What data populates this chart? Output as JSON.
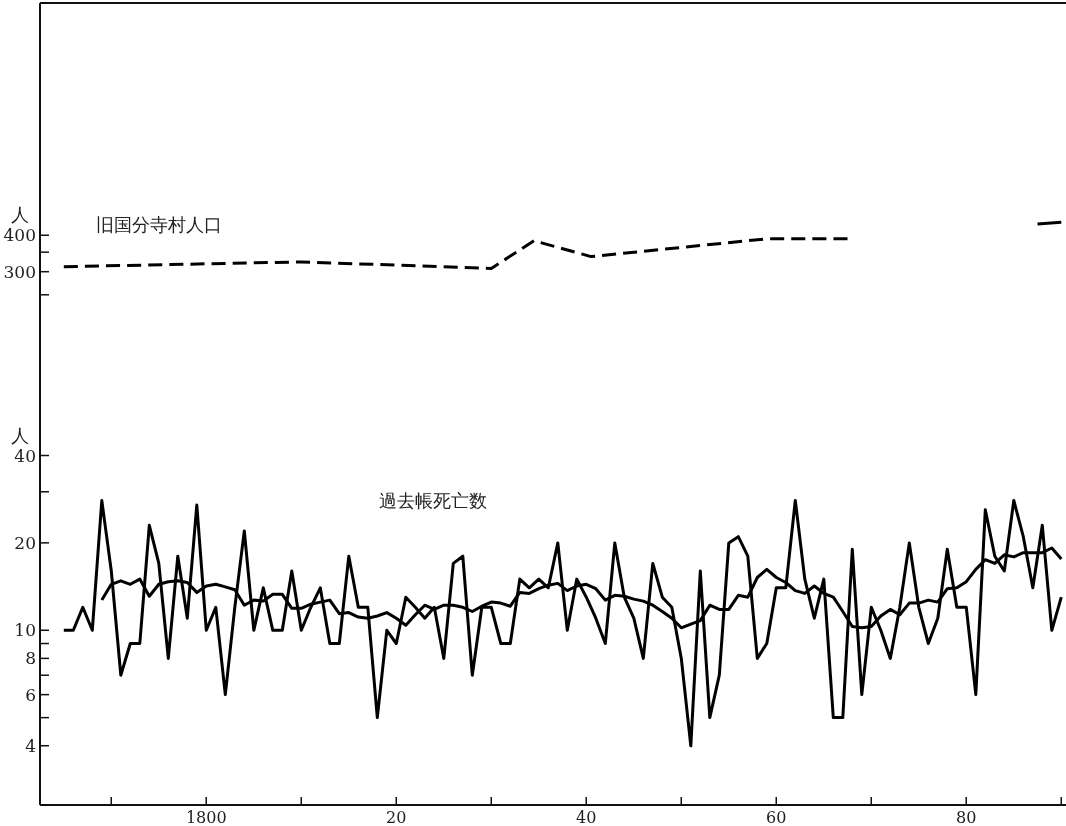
{
  "chart_data": [
    {
      "type": "line",
      "ylabel": "人",
      "log": "y",
      "xlim": [
        1782.5,
        1890.5
      ],
      "ylim": [
        175,
        2500
      ],
      "yticks": [
        {
          "value": 250,
          "label": null
        },
        300,
        {
          "value": 350,
          "label": null
        },
        400
      ],
      "tick_labels": "y",
      "series": [
        {
          "name": "旧国分寺村人口",
          "color": "#000000",
          "line_style": "dashed",
          "x": [
            1785,
            1810,
            1830,
            1834.5,
            1840.5,
            1859,
            1867.5
          ],
          "values": [
            312,
            324,
            308,
            383,
            338,
            389,
            389
          ]
        },
        {
          "color": "#000000",
          "line_style": "solid",
          "x": [
            1887.5,
            1890
          ],
          "values": [
            437,
            443
          ]
        }
      ]
    },
    {
      "type": "line",
      "ylabel": "人",
      "log": "y",
      "xlim": [
        1782.5,
        1890.5
      ],
      "ylim": [
        2.5,
        100
      ],
      "yticks": [
        {
          "value": 4,
          "label": "4"
        },
        {
          "value": 5,
          "label": null
        },
        6,
        {
          "value": 7,
          "label": null
        },
        8,
        {
          "value": 9,
          "label": null
        },
        10,
        20,
        {
          "value": 30,
          "label": null
        },
        40
      ],
      "xticks": [
        {
          "value": 1790,
          "label": null
        },
        1800,
        {
          "value": 1810,
          "label": null
        },
        {
          "value": 1820,
          "label": "20"
        },
        {
          "value": 1830,
          "label": null
        },
        {
          "value": 1840,
          "label": "40"
        },
        {
          "value": 1850,
          "label": null
        },
        {
          "value": 1860,
          "label": "60"
        },
        {
          "value": 1870,
          "label": null
        },
        {
          "value": 1880,
          "label": "80"
        },
        {
          "value": 1890,
          "label": null
        }
      ],
      "series": [
        {
          "name": "過去帳死亡数",
          "color": "#000000",
          "line_style": "solid",
          "x": [
            1785,
            1786,
            1787,
            1788,
            1789,
            1790,
            1791,
            1792,
            1793,
            1794,
            1795,
            1796,
            1797,
            1798,
            1799,
            1800,
            1801,
            1802,
            1803,
            1804,
            1805,
            1806,
            1807,
            1808,
            1809,
            1810,
            1811,
            1812,
            1813,
            1814,
            1815,
            1816,
            1817,
            1818,
            1819,
            1820,
            1821,
            1822,
            1823,
            1824,
            1825,
            1826,
            1827,
            1828,
            1829,
            1830,
            1831,
            1832,
            1833,
            1834,
            1835,
            1836,
            1837,
            1838,
            1839,
            1840,
            1841,
            1842,
            1843,
            1844,
            1845,
            1846,
            1847,
            1848,
            1849,
            1850,
            1851,
            1852,
            1853,
            1854,
            1855,
            1856,
            1857,
            1858,
            1859,
            1860,
            1861,
            1862,
            1863,
            1864,
            1865,
            1866,
            1867,
            1868,
            1869,
            1870,
            1871,
            1872,
            1873,
            1874,
            1875,
            1876,
            1877,
            1878,
            1879,
            1880,
            1881,
            1882,
            1883,
            1884,
            1885,
            1886,
            1887,
            1888,
            1889,
            1890
          ],
          "values": [
            10,
            10,
            12,
            10,
            28,
            16,
            7,
            9,
            9,
            23,
            17,
            8,
            18,
            11,
            27,
            10,
            12,
            6,
            12,
            22,
            10,
            14,
            10,
            10,
            16,
            10,
            12,
            14,
            9,
            9,
            18,
            12,
            12,
            5,
            10,
            9,
            13,
            12,
            11,
            12,
            8,
            17,
            18,
            7,
            12,
            12,
            9,
            9,
            15,
            14,
            15,
            14,
            20,
            10,
            15,
            13,
            11,
            9,
            20,
            13,
            11,
            8,
            17,
            13,
            12,
            8,
            4,
            16,
            5,
            7,
            20,
            21,
            18,
            8,
            9,
            14,
            14,
            28,
            15,
            11,
            15,
            5,
            5,
            19,
            6,
            12,
            10,
            8,
            12,
            20,
            12,
            9,
            11,
            19,
            12,
            12,
            6,
            26,
            18,
            16,
            28,
            21,
            14,
            23,
            10,
            13
          ]
        },
        {
          "color": "#000000",
          "line_style": "solid",
          "x": [
            1789,
            1790,
            1791,
            1792,
            1793,
            1794,
            1795,
            1796,
            1797,
            1798,
            1799,
            1800,
            1801,
            1802,
            1803,
            1804,
            1805,
            1806,
            1807,
            1808,
            1809,
            1810,
            1811,
            1812,
            1813,
            1814,
            1815,
            1816,
            1817,
            1818,
            1819,
            1820,
            1821,
            1822,
            1823,
            1824,
            1825,
            1826,
            1827,
            1828,
            1829,
            1830,
            1831,
            1832,
            1833,
            1834,
            1835,
            1836,
            1837,
            1838,
            1839,
            1840,
            1841,
            1842,
            1843,
            1844,
            1845,
            1846,
            1847,
            1848,
            1849,
            1850,
            1851,
            1852,
            1853,
            1854,
            1855,
            1856,
            1857,
            1858,
            1859,
            1860,
            1861,
            1862,
            1863,
            1864,
            1865,
            1866,
            1867,
            1868,
            1869,
            1870,
            1871,
            1872,
            1873,
            1874,
            1875,
            1876,
            1877,
            1878,
            1879,
            1880,
            1881,
            1882,
            1883,
            1884,
            1885,
            1886,
            1887,
            1888,
            1889,
            1890
          ],
          "values": [
            12.7,
            14.4,
            14.8,
            14.4,
            15.0,
            13.1,
            14.4,
            14.7,
            14.8,
            14.6,
            13.5,
            14.2,
            14.4,
            14.1,
            13.8,
            12.2,
            12.7,
            12.6,
            13.3,
            13.3,
            11.9,
            11.9,
            12.3,
            12.5,
            12.7,
            11.4,
            11.5,
            11.1,
            11.0,
            11.2,
            11.5,
            11.0,
            10.4,
            11.3,
            12.2,
            11.8,
            12.2,
            12.2,
            12.0,
            11.6,
            12.1,
            12.5,
            12.4,
            12.1,
            13.5,
            13.4,
            13.9,
            14.3,
            14.5,
            13.7,
            14.2,
            14.4,
            13.9,
            12.7,
            13.2,
            13.1,
            12.8,
            12.6,
            12.2,
            11.6,
            11.0,
            10.2,
            10.5,
            10.8,
            12.2,
            11.8,
            11.8,
            13.2,
            13.0,
            15.2,
            16.2,
            15.2,
            14.6,
            13.7,
            13.4,
            14.2,
            13.4,
            13.0,
            11.6,
            10.3,
            10.2,
            10.3,
            11.2,
            11.8,
            11.3,
            12.4,
            12.4,
            12.7,
            12.5,
            13.9,
            14.0,
            14.7,
            16.2,
            17.5,
            17.0,
            18.2,
            17.9,
            18.5,
            18.5,
            18.5,
            19.2,
            17.6
          ]
        }
      ]
    }
  ]
}
